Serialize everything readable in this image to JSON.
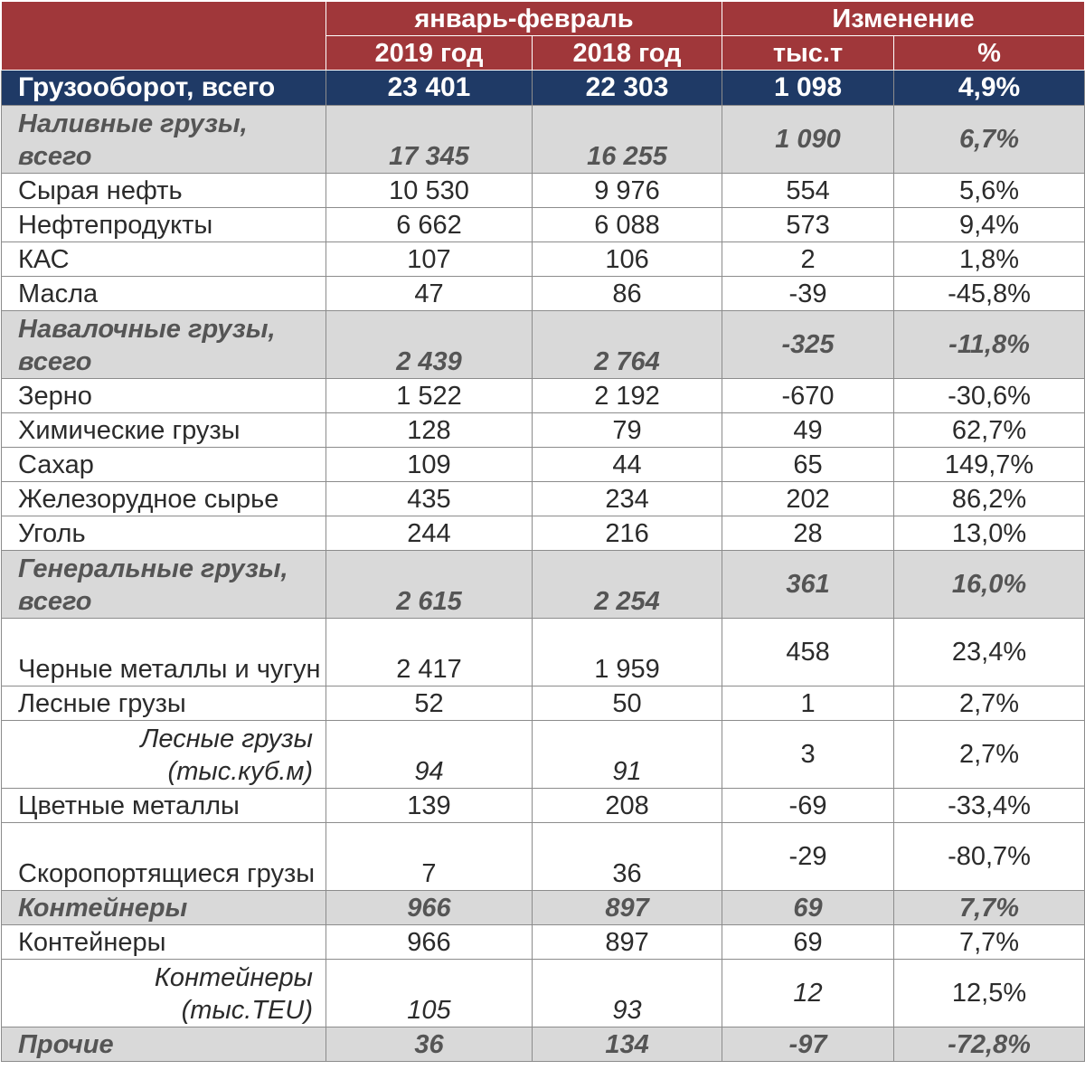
{
  "header": {
    "period": "январь-февраль",
    "change": "Изменение",
    "year_2019": "2019 год",
    "year_2018": "2018 год",
    "unit_abs": "тыс.т",
    "unit_pct": "%"
  },
  "total": {
    "label": "Грузооборот, всего",
    "v2019": "23 401",
    "v2018": "22 303",
    "abs": "1 098",
    "pct": "4,9%"
  },
  "rows": [
    {
      "kind": "group",
      "label": "Наливные грузы, всего",
      "v2019": "17 345",
      "v2018": "16 255",
      "abs": "1 090",
      "pct": "6,7%"
    },
    {
      "kind": "item",
      "label": "Сырая нефть",
      "v2019": "10 530",
      "v2018": "9 976",
      "abs": "554",
      "pct": "5,6%"
    },
    {
      "kind": "item",
      "label": "Нефтепродукты",
      "v2019": "6 662",
      "v2018": "6 088",
      "abs": "573",
      "pct": "9,4%"
    },
    {
      "kind": "item",
      "label": "КАС",
      "v2019": "107",
      "v2018": "106",
      "abs": "2",
      "pct": "1,8%"
    },
    {
      "kind": "item",
      "label": "Масла",
      "v2019": "47",
      "v2018": "86",
      "abs": "-39",
      "pct": "-45,8%"
    },
    {
      "kind": "group",
      "label": "Навалочные грузы, всего",
      "v2019": "2 439",
      "v2018": "2 764",
      "abs": "-325",
      "pct": "-11,8%"
    },
    {
      "kind": "item",
      "label": "Зерно",
      "v2019": "1 522",
      "v2018": "2 192",
      "abs": "-670",
      "pct": "-30,6%"
    },
    {
      "kind": "item",
      "label": "Химические грузы",
      "v2019": "128",
      "v2018": "79",
      "abs": "49",
      "pct": "62,7%"
    },
    {
      "kind": "item",
      "label": "Сахар",
      "v2019": "109",
      "v2018": "44",
      "abs": "65",
      "pct": "149,7%"
    },
    {
      "kind": "item",
      "label": "Железорудное сырье",
      "v2019": "435",
      "v2018": "234",
      "abs": "202",
      "pct": "86,2%"
    },
    {
      "kind": "item",
      "label": "Уголь",
      "v2019": "244",
      "v2018": "216",
      "abs": "28",
      "pct": "13,0%"
    },
    {
      "kind": "group",
      "label": "Генеральные грузы, всего",
      "v2019": "2 615",
      "v2018": "2 254",
      "abs": "361",
      "pct": "16,0%"
    },
    {
      "kind": "item-tall",
      "label": "Черные металлы и чугун",
      "v2019": "2 417",
      "v2018": "1 959",
      "abs": "458",
      "pct": "23,4%"
    },
    {
      "kind": "item",
      "label": "Лесные грузы",
      "v2019": "52",
      "v2018": "50",
      "abs": "1",
      "pct": "2,7%"
    },
    {
      "kind": "sub",
      "label": "Лесные грузы (тыс.куб.м)",
      "v2019": "94",
      "v2018": "91",
      "abs": "3",
      "pct": "2,7%"
    },
    {
      "kind": "item",
      "label": "Цветные металлы",
      "v2019": "139",
      "v2018": "208",
      "abs": "-69",
      "pct": "-33,4%"
    },
    {
      "kind": "item-tall",
      "label": "Скоропортящиеся грузы",
      "v2019": "7",
      "v2018": "36",
      "abs": "-29",
      "pct": "-80,7%"
    },
    {
      "kind": "group-single",
      "label": "Контейнеры",
      "v2019": "966",
      "v2018": "897",
      "abs": "69",
      "pct": "7,7%"
    },
    {
      "kind": "item",
      "label": "Контейнеры",
      "v2019": "966",
      "v2018": "897",
      "abs": "69",
      "pct": "7,7%"
    },
    {
      "kind": "sub",
      "label": "Контейнеры (тыс.TEU)",
      "v2019": "105",
      "v2018": "93",
      "abs": "12",
      "pct": "12,5%"
    },
    {
      "kind": "group-single",
      "label": "Прочие",
      "v2019": "36",
      "v2018": "134",
      "abs": "-97",
      "pct": "-72,8%"
    }
  ]
}
